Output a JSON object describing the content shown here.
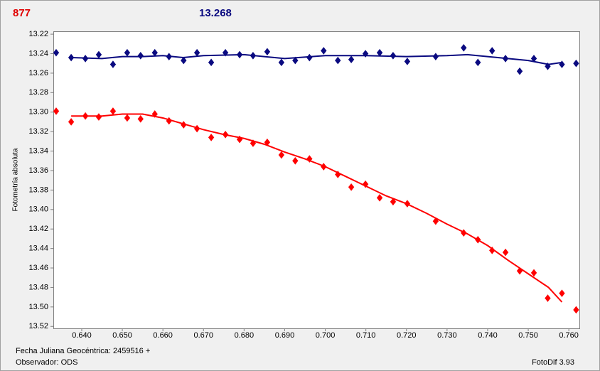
{
  "chart_data": {
    "type": "scatter",
    "header_left": "877",
    "header_right": "13.268",
    "ylabel": "Fotometría absoluta",
    "footer_left_1": "Fecha Juliana Geocéntrica: 2459516 +",
    "footer_left_2": "Observador: ODS",
    "footer_right": "FotoDif 3.93",
    "y_inverted": true,
    "xlim": [
      0.633,
      0.7626
    ],
    "ylim": [
      13.217,
      13.522
    ],
    "xticks": [
      {
        "value": 0.64,
        "label": "0.640"
      },
      {
        "value": 0.65,
        "label": "0.650"
      },
      {
        "value": 0.66,
        "label": "0.660"
      },
      {
        "value": 0.67,
        "label": "0.670"
      },
      {
        "value": 0.68,
        "label": "0.680"
      },
      {
        "value": 0.69,
        "label": "0.690"
      },
      {
        "value": 0.7,
        "label": "0.700"
      },
      {
        "value": 0.71,
        "label": "0.710"
      },
      {
        "value": 0.72,
        "label": "0.720"
      },
      {
        "value": 0.73,
        "label": "0.730"
      },
      {
        "value": 0.74,
        "label": "0.740"
      },
      {
        "value": 0.75,
        "label": "0.750"
      },
      {
        "value": 0.76,
        "label": "0.760"
      }
    ],
    "yticks": [
      13.22,
      13.24,
      13.26,
      13.28,
      {
        "value": 13.3,
        "label": "13.30"
      },
      13.32,
      13.34,
      13.36,
      13.38,
      {
        "value": 13.4,
        "label": "13.40"
      },
      13.42,
      13.44,
      13.46,
      13.48,
      {
        "value": 13.5,
        "label": "13.50"
      },
      13.52
    ],
    "series": [
      {
        "color": "#0a0a80",
        "mode": "points",
        "x": [
          0.6337,
          0.6374,
          0.6409,
          0.6442,
          0.6477,
          0.6512,
          0.6545,
          0.658,
          0.6615,
          0.6651,
          0.6684,
          0.6719,
          0.6754,
          0.6789,
          0.6822,
          0.6857,
          0.6892,
          0.6926,
          0.6961,
          0.6996,
          0.7031,
          0.7064,
          0.7099,
          0.7134,
          0.7167,
          0.7202,
          0.7272,
          0.7341,
          0.7376,
          0.7411,
          0.7444,
          0.7479,
          0.7514,
          0.7548,
          0.7583,
          0.7618
        ],
        "values": [
          13.239,
          13.244,
          13.245,
          13.241,
          13.251,
          13.239,
          13.242,
          13.239,
          13.243,
          13.247,
          13.239,
          13.249,
          13.239,
          13.241,
          13.242,
          13.238,
          13.249,
          13.247,
          13.244,
          13.237,
          13.247,
          13.246,
          13.24,
          13.239,
          13.242,
          13.248,
          13.243,
          13.234,
          13.249,
          13.237,
          13.245,
          13.258,
          13.245,
          13.253,
          13.251,
          13.25
        ]
      },
      {
        "color": "#ff0000",
        "mode": "points",
        "x": [
          0.6337,
          0.6374,
          0.6409,
          0.6442,
          0.6477,
          0.6512,
          0.6545,
          0.658,
          0.6615,
          0.6651,
          0.6684,
          0.6719,
          0.6754,
          0.6789,
          0.6822,
          0.6857,
          0.6892,
          0.6926,
          0.6961,
          0.6996,
          0.7031,
          0.7064,
          0.7099,
          0.7134,
          0.7167,
          0.7202,
          0.7272,
          0.7341,
          0.7376,
          0.7411,
          0.7444,
          0.7479,
          0.7514,
          0.7548,
          0.7583,
          0.7618
        ],
        "values": [
          13.299,
          13.31,
          13.304,
          13.305,
          13.299,
          13.306,
          13.307,
          13.302,
          13.309,
          13.313,
          13.317,
          13.326,
          13.323,
          13.328,
          13.332,
          13.331,
          13.344,
          13.35,
          13.348,
          13.356,
          13.364,
          13.377,
          13.374,
          13.388,
          13.392,
          13.394,
          13.412,
          13.424,
          13.431,
          13.442,
          13.444,
          13.463,
          13.465,
          13.491,
          13.486,
          13.503
        ]
      },
      {
        "color": "#0a0a80",
        "mode": "line",
        "x": [
          0.6374,
          0.645,
          0.65,
          0.655,
          0.66,
          0.665,
          0.67,
          0.68,
          0.69,
          0.7,
          0.71,
          0.72,
          0.73,
          0.735,
          0.74,
          0.745,
          0.75,
          0.755,
          0.7583
        ],
        "values": [
          13.244,
          13.245,
          13.243,
          13.243,
          13.242,
          13.244,
          13.242,
          13.241,
          13.245,
          13.242,
          13.242,
          13.243,
          13.242,
          13.241,
          13.243,
          13.245,
          13.247,
          13.251,
          13.249
        ]
      },
      {
        "color": "#ff0000",
        "mode": "line",
        "x": [
          0.6374,
          0.645,
          0.65,
          0.655,
          0.66,
          0.665,
          0.67,
          0.675,
          0.68,
          0.685,
          0.69,
          0.695,
          0.7,
          0.705,
          0.71,
          0.715,
          0.72,
          0.725,
          0.73,
          0.735,
          0.74,
          0.745,
          0.75,
          0.755,
          0.7583
        ],
        "values": [
          13.304,
          13.304,
          13.302,
          13.302,
          13.306,
          13.312,
          13.318,
          13.323,
          13.327,
          13.333,
          13.341,
          13.348,
          13.356,
          13.366,
          13.376,
          13.386,
          13.394,
          13.404,
          13.415,
          13.425,
          13.437,
          13.452,
          13.466,
          13.48,
          13.495
        ]
      }
    ]
  }
}
